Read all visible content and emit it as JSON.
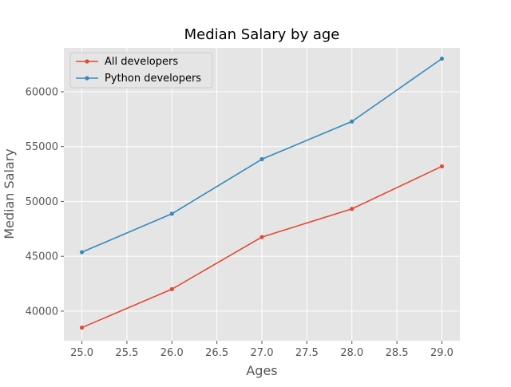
{
  "colors": {
    "background": "#ffffff",
    "plot_background": "#e5e5e5",
    "grid": "#ffffff",
    "text": "#555555",
    "title": "#000000",
    "legend_background": "#e5e5e5",
    "legend_border": "#cccccc"
  },
  "chart_data": {
    "type": "line",
    "title": "Median Salary by age",
    "xlabel": "Ages",
    "ylabel": "Median Salary",
    "x": [
      25,
      26,
      27,
      28,
      29
    ],
    "series": [
      {
        "name": "All developers",
        "color": "#e24a33",
        "marker": "circle",
        "values": [
          38496,
          42000,
          46752,
          49320,
          53200
        ]
      },
      {
        "name": "Python developers",
        "color": "#348abd",
        "marker": "circle",
        "values": [
          45372,
          48876,
          53850,
          57287,
          63016
        ]
      }
    ],
    "xlim": [
      24.8,
      29.2
    ],
    "ylim": [
      37300,
      64000
    ],
    "xticks": [
      25.0,
      25.5,
      26.0,
      26.5,
      27.0,
      27.5,
      28.0,
      28.5,
      29.0
    ],
    "xtick_labels": [
      "25.0",
      "25.5",
      "26.0",
      "26.5",
      "27.0",
      "27.5",
      "28.0",
      "28.5",
      "29.0"
    ],
    "yticks": [
      40000,
      45000,
      50000,
      55000,
      60000
    ],
    "ytick_labels": [
      "40000",
      "45000",
      "50000",
      "55000",
      "60000"
    ],
    "grid": true,
    "legend_position": "top-left"
  }
}
